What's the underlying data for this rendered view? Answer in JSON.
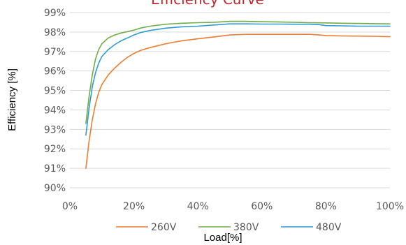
{
  "chart_data": {
    "type": "line",
    "title": "Efficiency Curve",
    "xlabel": "Load[%]",
    "ylabel": "Efficiency [%]",
    "xlim": [
      0,
      100
    ],
    "ylim": [
      90,
      99
    ],
    "x_ticks": [
      0,
      20,
      40,
      60,
      80,
      100
    ],
    "x_tick_labels": [
      "0%",
      "20%",
      "40%",
      "60%",
      "80%",
      "100%"
    ],
    "y_ticks": [
      90,
      91,
      92,
      93,
      94,
      95,
      96,
      97,
      98,
      99
    ],
    "y_tick_labels": [
      "90%",
      "91%",
      "92%",
      "93%",
      "94%",
      "95%",
      "96%",
      "97%",
      "98%",
      "99%"
    ],
    "grid": "horizontal",
    "legend_position": "bottom",
    "series": [
      {
        "name": "260V",
        "color": "#ed7d31",
        "x": [
          5,
          6,
          7,
          8,
          9,
          10,
          12,
          14,
          16,
          18,
          20,
          22,
          25,
          30,
          35,
          40,
          45,
          50,
          55,
          60,
          65,
          70,
          75,
          78,
          80,
          85,
          90,
          95,
          100
        ],
        "y": [
          91.0,
          92.4,
          93.5,
          94.3,
          94.9,
          95.3,
          95.8,
          96.15,
          96.45,
          96.7,
          96.9,
          97.05,
          97.2,
          97.4,
          97.55,
          97.65,
          97.75,
          97.85,
          97.88,
          97.88,
          97.88,
          97.88,
          97.88,
          97.85,
          97.82,
          97.8,
          97.79,
          97.78,
          97.76
        ]
      },
      {
        "name": "380V",
        "color": "#70ad47",
        "x": [
          5,
          6,
          7,
          8,
          9,
          10,
          12,
          14,
          16,
          18,
          20,
          22,
          25,
          30,
          35,
          40,
          45,
          50,
          55,
          60,
          65,
          70,
          75,
          80,
          85,
          90,
          95,
          100
        ],
        "y": [
          93.3,
          94.7,
          95.8,
          96.6,
          97.1,
          97.4,
          97.7,
          97.85,
          97.95,
          98.02,
          98.1,
          98.2,
          98.3,
          98.4,
          98.45,
          98.48,
          98.5,
          98.55,
          98.55,
          98.53,
          98.52,
          98.5,
          98.48,
          98.47,
          98.45,
          98.44,
          98.43,
          98.42
        ]
      },
      {
        "name": "480V",
        "color": "#2e9bd6",
        "x": [
          5,
          6,
          7,
          8,
          9,
          10,
          12,
          14,
          16,
          18,
          20,
          22,
          25,
          30,
          35,
          40,
          45,
          50,
          55,
          60,
          65,
          70,
          75,
          78,
          80,
          85,
          90,
          95,
          100
        ],
        "y": [
          92.7,
          94.1,
          95.2,
          95.9,
          96.4,
          96.75,
          97.1,
          97.35,
          97.55,
          97.7,
          97.85,
          97.97,
          98.08,
          98.2,
          98.27,
          98.3,
          98.36,
          98.42,
          98.42,
          98.41,
          98.41,
          98.4,
          98.4,
          98.38,
          98.33,
          98.32,
          98.3,
          98.3,
          98.3
        ]
      }
    ]
  }
}
